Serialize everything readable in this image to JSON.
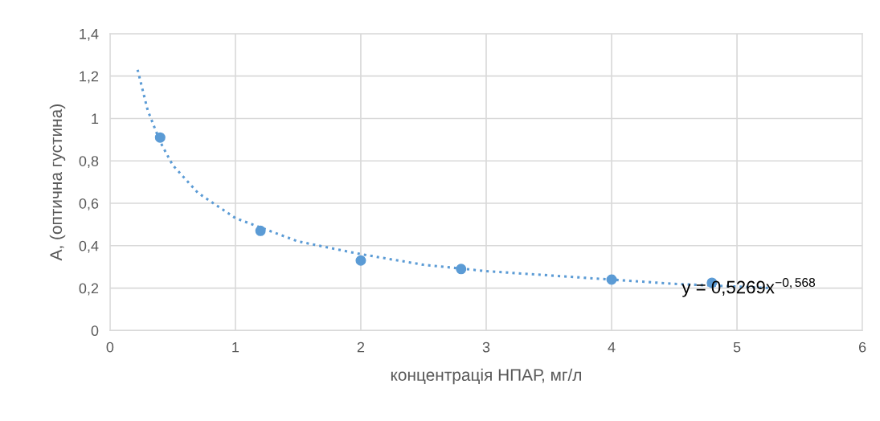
{
  "chart_data": {
    "type": "scatter",
    "xlabel": "концентрація НПАР, мг/л",
    "ylabel": "A, (оптична густина)",
    "x": [
      0.4,
      1.2,
      2.0,
      2.8,
      4.0,
      4.8
    ],
    "series": [
      {
        "color": "#5b9bd5",
        "marker": "circle",
        "values": [
          0.91,
          0.47,
          0.33,
          0.29,
          0.24,
          0.225
        ]
      },
      {
        "type": "line",
        "color": "#5b9bd5",
        "line_style": "dotted",
        "marker": "none",
        "x": [
          0.22,
          0.3,
          0.4,
          0.5,
          0.7,
          1.0,
          1.5,
          2.0,
          2.5,
          3.0,
          3.5,
          4.0,
          4.5,
          5.27
        ],
        "values": [
          1.23,
          1.04,
          0.89,
          0.78,
          0.65,
          0.53,
          0.42,
          0.36,
          0.31,
          0.28,
          0.26,
          0.24,
          0.22,
          0.2
        ]
      }
    ],
    "annotations": [
      "y = 0,5269x$^{−0,568}$"
    ],
    "xlim": [
      0,
      6
    ],
    "xticks": [
      0,
      1,
      2,
      3,
      4,
      5,
      6
    ],
    "ylim": [
      0,
      1.4
    ],
    "yticks": [
      0,
      {
        "value": 0.2,
        "label": "0,2"
      },
      {
        "value": 0.4,
        "label": "0,4"
      },
      {
        "value": 0.6,
        "label": "0,6"
      },
      {
        "value": 0.8,
        "label": "0,8"
      },
      1,
      {
        "value": 1.2,
        "label": "1,2"
      },
      {
        "value": 1.4,
        "label": "1,4"
      }
    ],
    "grid": true
  }
}
